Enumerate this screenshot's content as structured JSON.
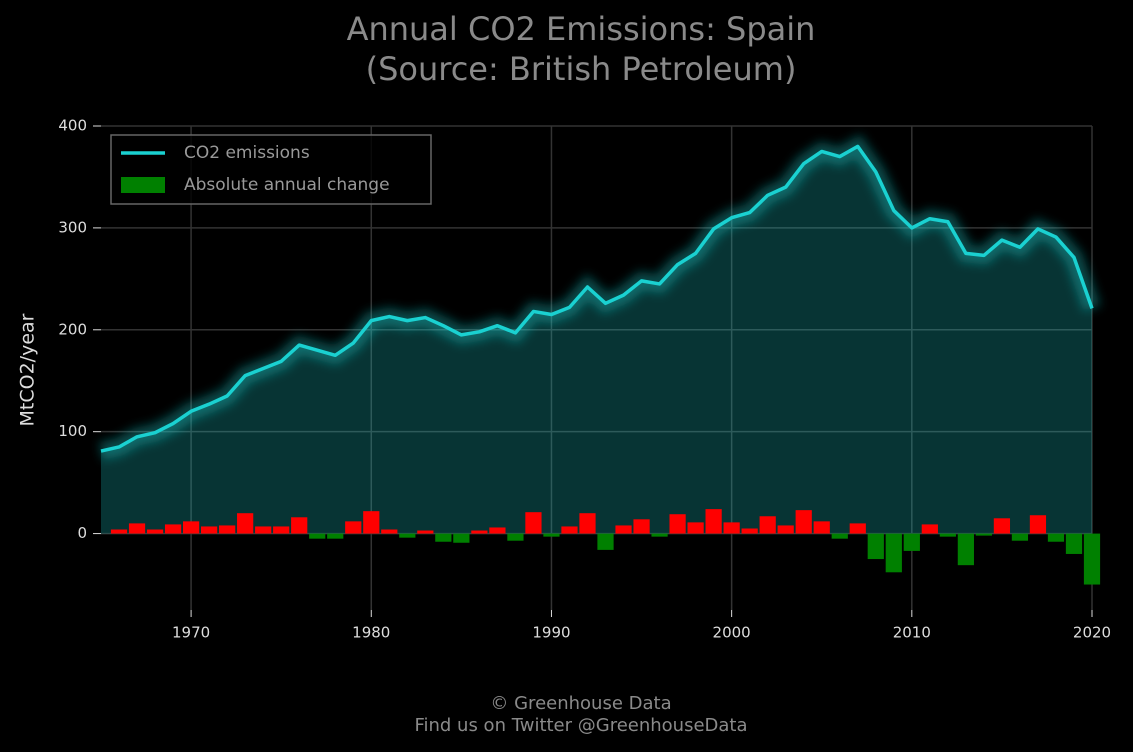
{
  "chart_data": {
    "type": "line",
    "title": "Annual CO2 Emissions: Spain",
    "subtitle": "(Source: British Petroleum)",
    "y_label": "MtCO2/year",
    "footer": [
      "© Greenhouse Data",
      "Find us on Twitter @GreenhouseData"
    ],
    "x": [
      1965,
      1966,
      1967,
      1968,
      1969,
      1970,
      1971,
      1972,
      1973,
      1974,
      1975,
      1976,
      1977,
      1978,
      1979,
      1980,
      1981,
      1982,
      1983,
      1984,
      1985,
      1986,
      1987,
      1988,
      1989,
      1990,
      1991,
      1992,
      1993,
      1994,
      1995,
      1996,
      1997,
      1998,
      1999,
      2000,
      2001,
      2002,
      2003,
      2004,
      2005,
      2006,
      2007,
      2008,
      2009,
      2010,
      2011,
      2012,
      2013,
      2014,
      2015,
      2016,
      2017,
      2018,
      2019,
      2020
    ],
    "series": [
      {
        "name": "CO2 emissions",
        "color": "#1ad1d1",
        "values": [
          81,
          85,
          95,
          99,
          108,
          120,
          127,
          135,
          155,
          162,
          169,
          185,
          180,
          175,
          187,
          209,
          213,
          209,
          212,
          204,
          195,
          198,
          204,
          197,
          218,
          215,
          222,
          242,
          226,
          234,
          248,
          245,
          264,
          275,
          299,
          310,
          315,
          332,
          340,
          363,
          375,
          370,
          380,
          355,
          317,
          300,
          309,
          306,
          275,
          273,
          288,
          281,
          299,
          291,
          271,
          221
        ]
      },
      {
        "name": "Absolute annual change",
        "color": "#008000",
        "positive_color": "#ff0000",
        "type": "bar",
        "values": [
          null,
          4,
          10,
          4,
          9,
          12,
          7,
          8,
          20,
          7,
          7,
          16,
          -5,
          -5,
          12,
          22,
          4,
          -4,
          3,
          -8,
          -9,
          3,
          6,
          -7,
          21,
          -3,
          7,
          20,
          -16,
          8,
          14,
          -3,
          19,
          11,
          24,
          11,
          5,
          17,
          8,
          23,
          12,
          -5,
          10,
          -25,
          -38,
          -17,
          9,
          -3,
          -31,
          -2,
          15,
          -7,
          18,
          -8,
          -20,
          -50
        ]
      }
    ],
    "xlim": [
      1965,
      2020
    ],
    "xticks": [
      1970,
      1980,
      1990,
      2000,
      2010,
      2020
    ],
    "ylim": [
      -75,
      400
    ],
    "yticks": [
      0,
      100,
      200,
      300,
      400
    ],
    "grid": true,
    "legend": "upper left"
  }
}
